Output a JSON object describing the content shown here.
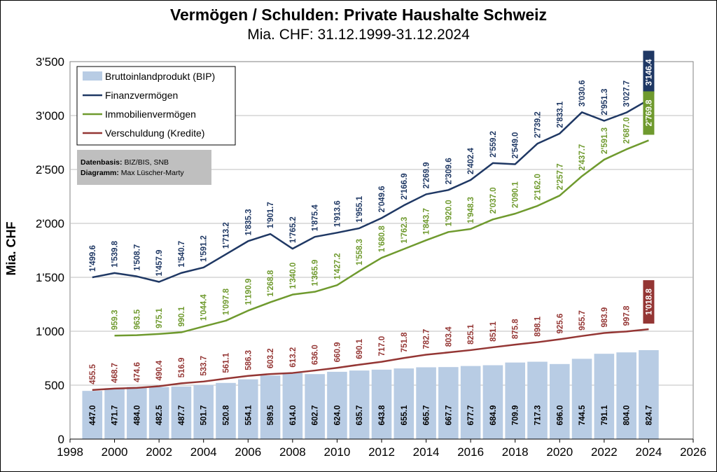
{
  "chart_data": {
    "type": "bar",
    "title": "Vermögen / Schulden: Private Haushalte Schweiz",
    "subtitle": "Mia. CHF: 31.12.1999-31.12.2024",
    "ylabel": "Mia. CHF",
    "xlim": [
      1998,
      2026
    ],
    "ylim": [
      0,
      3500
    ],
    "x_ticks": [
      1998,
      2000,
      2002,
      2004,
      2006,
      2008,
      2010,
      2012,
      2014,
      2016,
      2018,
      2020,
      2022,
      2024,
      2026
    ],
    "y_ticks": [
      0,
      500,
      1000,
      1500,
      2000,
      2500,
      3000,
      3500
    ],
    "y_tick_labels": [
      "0",
      "500",
      "1'000",
      "1'500",
      "2'000",
      "2'500",
      "3'000",
      "3'500"
    ],
    "grid": "horizontal",
    "legend_position": "top-left",
    "colors": {
      "bip": "#b8cce4",
      "finanz": "#1f3864",
      "immobilien": "#6f9a2e",
      "verschuldung": "#943634",
      "grid": "#bfbfbf",
      "source_box": "#bfbfbf"
    },
    "series": [
      {
        "name": "Bruttoinlandprodukt (BIP)",
        "type": "bar",
        "x": [
          1999,
          2000,
          2001,
          2002,
          2003,
          2004,
          2005,
          2006,
          2007,
          2008,
          2009,
          2010,
          2011,
          2012,
          2013,
          2014,
          2015,
          2016,
          2017,
          2018,
          2019,
          2020,
          2021,
          2022,
          2023,
          2024
        ],
        "values": [
          447.0,
          471.7,
          484.0,
          482.5,
          487.7,
          501.7,
          520.8,
          554.1,
          589.5,
          614.0,
          602.7,
          624.0,
          635.7,
          643.8,
          655.1,
          665.7,
          667.7,
          677.7,
          684.9,
          709.9,
          717.3,
          696.0,
          744.5,
          791.1,
          804.0,
          824.7
        ],
        "labels": [
          "447.0",
          "471.7",
          "484.0",
          "482.5",
          "487.7",
          "501.7",
          "520.8",
          "554.1",
          "589.5",
          "614.0",
          "602.7",
          "624.0",
          "635.7",
          "643.8",
          "655.1",
          "665.7",
          "667.7",
          "677.7",
          "684.9",
          "709.9",
          "717.3",
          "696.0",
          "744.5",
          "791.1",
          "804.0",
          "824.7"
        ]
      },
      {
        "name": "Finanzvermögen",
        "type": "line",
        "x": [
          1999,
          2000,
          2001,
          2002,
          2003,
          2004,
          2005,
          2006,
          2007,
          2008,
          2009,
          2010,
          2011,
          2012,
          2013,
          2014,
          2015,
          2016,
          2017,
          2018,
          2019,
          2020,
          2021,
          2022,
          2023,
          2024
        ],
        "values": [
          1499.6,
          1539.8,
          1508.7,
          1457.9,
          1540.7,
          1591.2,
          1713.2,
          1835.3,
          1901.7,
          1765.2,
          1875.4,
          1913.6,
          1955.1,
          2049.6,
          2166.9,
          2269.9,
          2309.6,
          2402.4,
          2559.2,
          2549.0,
          2739.2,
          2833.1,
          3030.6,
          2951.3,
          3027.7,
          3146.4
        ],
        "labels": [
          "1'499.6",
          "1'539.8",
          "1'508.7",
          "1'457.9",
          "1'540.7",
          "1'591.2",
          "1'713.2",
          "1'835.3",
          "1'901.7",
          "1'765.2",
          "1'875.4",
          "1'913.6",
          "1'955.1",
          "2'049.6",
          "2'166.9",
          "2'269.9",
          "2'309.6",
          "2'402.4",
          "2'559.2",
          "2'549.0",
          "2'739.2",
          "2'833.1",
          "3'030.6",
          "2'951.3",
          "3'027.7",
          "3'146.4"
        ]
      },
      {
        "name": "Immobilienvermögen",
        "type": "line",
        "x": [
          2000,
          2001,
          2002,
          2003,
          2004,
          2005,
          2006,
          2007,
          2008,
          2009,
          2010,
          2011,
          2012,
          2013,
          2014,
          2015,
          2016,
          2017,
          2018,
          2019,
          2020,
          2021,
          2022,
          2023,
          2024
        ],
        "values": [
          959.3,
          963.5,
          975.1,
          990.1,
          1044.4,
          1097.8,
          1190.9,
          1268.8,
          1340.0,
          1365.9,
          1427.2,
          1558.3,
          1680.8,
          1762.3,
          1843.7,
          1920.0,
          1948.3,
          2037.0,
          2090.1,
          2162.0,
          2257.7,
          2437.7,
          2591.3,
          2687.0,
          2769.8
        ],
        "labels": [
          "959.3",
          "963.5",
          "975.1",
          "990.1",
          "1'044.4",
          "1'097.8",
          "1'190.9",
          "1'268.8",
          "1'340.0",
          "1'365.9",
          "1'427.2",
          "1'558.3",
          "1'680.8",
          "1'762.3",
          "1'843.7",
          "1'920.0",
          "1'948.3",
          "2'037.0",
          "2'090.1",
          "2'162.0",
          "2'257.7",
          "2'437.7",
          "2'591.3",
          "2'687.0",
          "2'769.8"
        ]
      },
      {
        "name": "Verschuldung (Kredite)",
        "type": "line",
        "x": [
          1999,
          2000,
          2001,
          2002,
          2003,
          2004,
          2005,
          2006,
          2007,
          2008,
          2009,
          2010,
          2011,
          2012,
          2013,
          2014,
          2015,
          2016,
          2017,
          2018,
          2019,
          2020,
          2021,
          2022,
          2023,
          2024
        ],
        "values": [
          455.5,
          468.7,
          474.6,
          490.4,
          516.9,
          533.7,
          561.1,
          586.3,
          603.2,
          613.2,
          636.0,
          660.9,
          690.1,
          717.0,
          751.8,
          782.7,
          803.4,
          825.1,
          851.1,
          875.8,
          898.1,
          925.6,
          955.7,
          983.9,
          997.8,
          1018.8
        ],
        "labels": [
          "455.5",
          "468.7",
          "474.6",
          "490.4",
          "516.9",
          "533.7",
          "561.1",
          "586.3",
          "603.2",
          "613.2",
          "636.0",
          "660.9",
          "690.1",
          "717.0",
          "751.8",
          "782.7",
          "803.4",
          "825.1",
          "851.1",
          "875.8",
          "898.1",
          "925.6",
          "955.7",
          "983.9",
          "997.8",
          "1'018.8"
        ]
      }
    ],
    "source": {
      "line1_label": "Datenbasis:",
      "line1_value": "BIZ/BIS, SNB",
      "line2_label": "Diagramm:",
      "line2_value": "Max Lüscher-Marty"
    }
  }
}
